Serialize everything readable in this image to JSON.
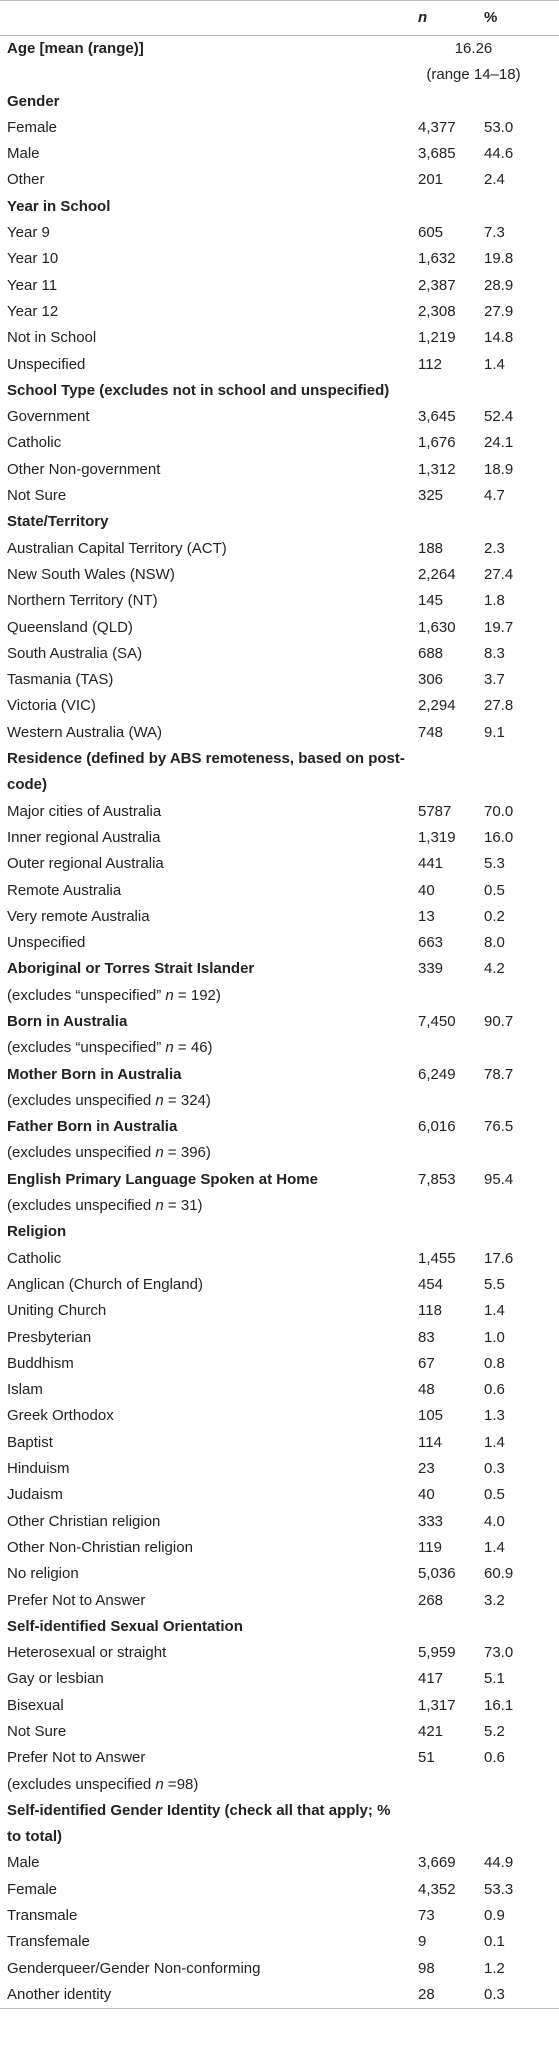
{
  "table": {
    "header": {
      "n": "n",
      "percent": "%"
    },
    "sections": [
      {
        "title": "Age [mean (range)]",
        "mean": "16.26",
        "range": "(range 14–18)"
      },
      {
        "title": "Gender",
        "rows": [
          [
            "Female",
            "4,377",
            "53.0"
          ],
          [
            "Male",
            "3,685",
            "44.6"
          ],
          [
            "Other",
            "201",
            "2.4"
          ]
        ]
      },
      {
        "title": "Year in School",
        "rows": [
          [
            "Year 9",
            "605",
            "7.3"
          ],
          [
            "Year 10",
            "1,632",
            "19.8"
          ],
          [
            "Year 11",
            "2,387",
            "28.9"
          ],
          [
            "Year 12",
            "2,308",
            "27.9"
          ],
          [
            "Not in School",
            "1,219",
            "14.8"
          ],
          [
            "Unspecified",
            "112",
            "1.4"
          ]
        ]
      },
      {
        "title": "School Type (excludes not in school and unspecified)",
        "rows": [
          [
            "Government",
            "3,645",
            "52.4"
          ],
          [
            "Catholic",
            "1,676",
            "24.1"
          ],
          [
            "Other Non-government",
            "1,312",
            "18.9"
          ],
          [
            "Not Sure",
            "325",
            "4.7"
          ]
        ]
      },
      {
        "title": "State/Territory",
        "rows": [
          [
            "Australian Capital Territory (ACT)",
            "188",
            "2.3"
          ],
          [
            "New South Wales (NSW)",
            "2,264",
            "27.4"
          ],
          [
            "Northern Territory (NT)",
            "145",
            "1.8"
          ],
          [
            "Queensland (QLD)",
            "1,630",
            "19.7"
          ],
          [
            "South Australia (SA)",
            "688",
            "8.3"
          ],
          [
            "Tasmania (TAS)",
            "306",
            "3.7"
          ],
          [
            "Victoria (VIC)",
            "2,294",
            "27.8"
          ],
          [
            "Western Australia (WA)",
            "748",
            "9.1"
          ]
        ]
      },
      {
        "title": "Residence (defined by ABS remoteness, based on post-code)",
        "rows": [
          [
            "Major cities of Australia",
            "5787",
            "70.0"
          ],
          [
            "Inner regional Australia",
            "1,319",
            "16.0"
          ],
          [
            "Outer regional Australia",
            "441",
            "5.3"
          ],
          [
            "Remote Australia",
            "40",
            "0.5"
          ],
          [
            "Very remote Australia",
            "13",
            "0.2"
          ],
          [
            "Unspecified",
            "663",
            "8.0"
          ]
        ]
      },
      {
        "title": "Aboriginal or Torres Strait Islander",
        "n": "339",
        "percent": "4.2",
        "note": [
          "(excludes “unspecified” ",
          "n",
          " = 192)"
        ]
      },
      {
        "title": "Born in Australia",
        "n": "7,450",
        "percent": "90.7",
        "note": [
          "(excludes “unspecified” ",
          "n",
          " = 46)"
        ]
      },
      {
        "title": "Mother Born in Australia",
        "n": "6,249",
        "percent": "78.7",
        "note": [
          "(excludes unspecified ",
          "n",
          " = 324)"
        ]
      },
      {
        "title": "Father Born in Australia",
        "n": "6,016",
        "percent": "76.5",
        "note": [
          "(excludes unspecified ",
          "n",
          " = 396)"
        ]
      },
      {
        "title": "English Primary Language Spoken at Home",
        "n": "7,853",
        "percent": "95.4",
        "note": [
          "(excludes unspecified ",
          "n",
          " = 31)"
        ]
      },
      {
        "title": "Religion",
        "rows": [
          [
            "Catholic",
            "1,455",
            "17.6"
          ],
          [
            "Anglican (Church of England)",
            "454",
            "5.5"
          ],
          [
            "Uniting Church",
            "118",
            "1.4"
          ],
          [
            "Presbyterian",
            "83",
            "1.0"
          ],
          [
            "Buddhism",
            "67",
            "0.8"
          ],
          [
            "Islam",
            "48",
            "0.6"
          ],
          [
            "Greek Orthodox",
            "105",
            "1.3"
          ],
          [
            "Baptist",
            "114",
            "1.4"
          ],
          [
            "Hinduism",
            "23",
            "0.3"
          ],
          [
            "Judaism",
            "40",
            "0.5"
          ],
          [
            "Other Christian religion",
            "333",
            "4.0"
          ],
          [
            "Other Non-Christian religion",
            "119",
            "1.4"
          ],
          [
            "No religion",
            "5,036",
            "60.9"
          ],
          [
            "Prefer Not to Answer",
            "268",
            "3.2"
          ]
        ]
      },
      {
        "title": "Self-identified Sexual Orientation",
        "rows": [
          [
            "Heterosexual or straight",
            "5,959",
            "73.0"
          ],
          [
            "Gay or lesbian",
            "417",
            "5.1"
          ],
          [
            "Bisexual",
            "1,317",
            "16.1"
          ],
          [
            "Not Sure",
            "421",
            "5.2"
          ],
          [
            "Prefer Not to Answer",
            "51",
            "0.6"
          ]
        ],
        "note": [
          "(excludes unspecified ",
          "n",
          " =98)"
        ]
      },
      {
        "title": "Self-identified Gender Identity (check all that apply; % to total)",
        "rows": [
          [
            "Male",
            "3,669",
            "44.9"
          ],
          [
            "Female",
            "4,352",
            "53.3"
          ],
          [
            "Transmale",
            "73",
            "0.9"
          ],
          [
            "Transfemale",
            "9",
            "0.1"
          ],
          [
            "Genderqueer/Gender Non-conforming",
            "98",
            "1.2"
          ],
          [
            "Another identity",
            "28",
            "0.3"
          ]
        ]
      }
    ]
  }
}
